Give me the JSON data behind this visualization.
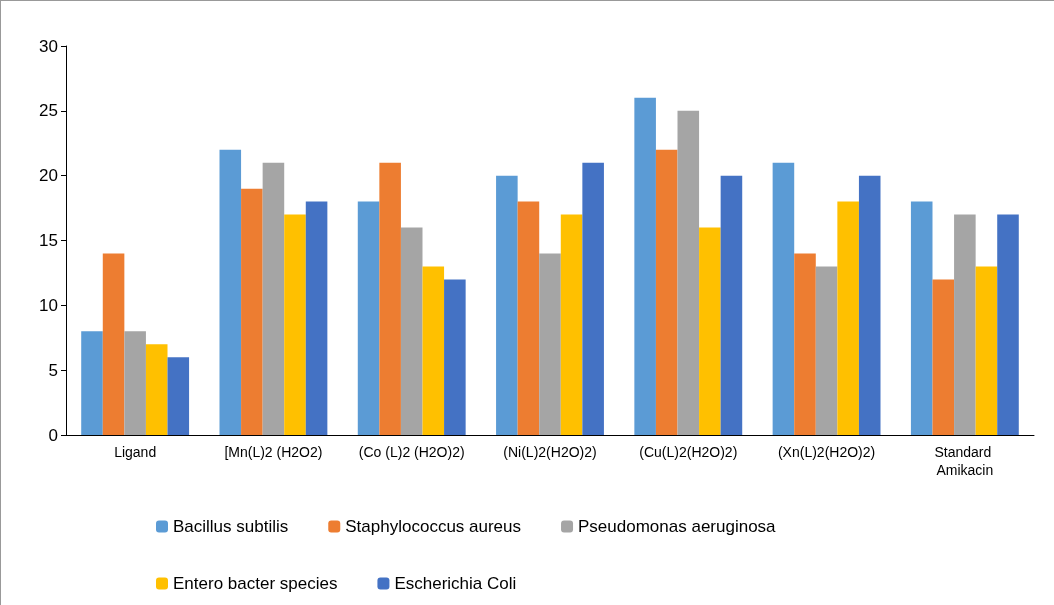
{
  "chart_data": {
    "type": "bar",
    "categories": [
      "Ligand",
      "[Mn(L)2 (H2O2)",
      "(Co (L)2 (H2O)2)",
      "(Ni(L)2(H2O)2)",
      "(Cu(L)2(H2O)2)",
      "(Xn(L)2(H2O)2)",
      "Standard Amikacin"
    ],
    "series": [
      {
        "name": "Bacillus subtilis",
        "color": "#5b9bd5",
        "values": [
          8,
          22,
          18,
          20,
          26,
          21,
          18
        ]
      },
      {
        "name": "Staphylococcus aureus",
        "color": "#ed7d31",
        "values": [
          14,
          19,
          21,
          18,
          22,
          14,
          12
        ]
      },
      {
        "name": "Pseudomonas aeruginosa",
        "color": "#a5a5a5",
        "values": [
          8,
          21,
          16,
          14,
          25,
          13,
          17
        ]
      },
      {
        "name": "Entero bacter species",
        "color": "#ffc000",
        "values": [
          7,
          17,
          13,
          17,
          16,
          18,
          13
        ]
      },
      {
        "name": "Escherichia Coli",
        "color": "#4472c4",
        "values": [
          6,
          18,
          12,
          21,
          20,
          20,
          17
        ]
      }
    ],
    "ylim": [
      0,
      30
    ],
    "yticks": [
      0,
      5,
      10,
      15,
      20,
      25,
      30
    ],
    "grid": false,
    "legend": "bottom"
  }
}
